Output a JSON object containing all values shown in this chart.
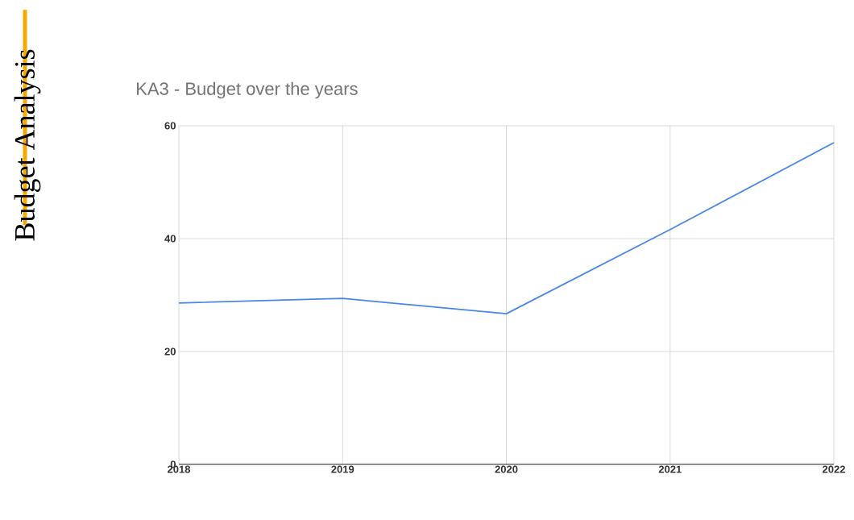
{
  "chart_data": {
    "type": "line",
    "title": "KA3 - Budget over the years",
    "ylabel": "Budget Analysis",
    "x": [
      2018,
      2019,
      2020,
      2021,
      2022
    ],
    "series": [
      {
        "color": "#4a86e8",
        "values": [
          28.6,
          29.4,
          26.7,
          41.6,
          57.0
        ]
      }
    ],
    "xlim": [
      2018,
      2022
    ],
    "xticks": [
      2018,
      2019,
      2020,
      2021,
      2022
    ],
    "ylim": [
      0,
      60
    ],
    "yticks": [
      0,
      20,
      40,
      60
    ],
    "grid": true,
    "marker": "none",
    "line_style": "solid"
  }
}
